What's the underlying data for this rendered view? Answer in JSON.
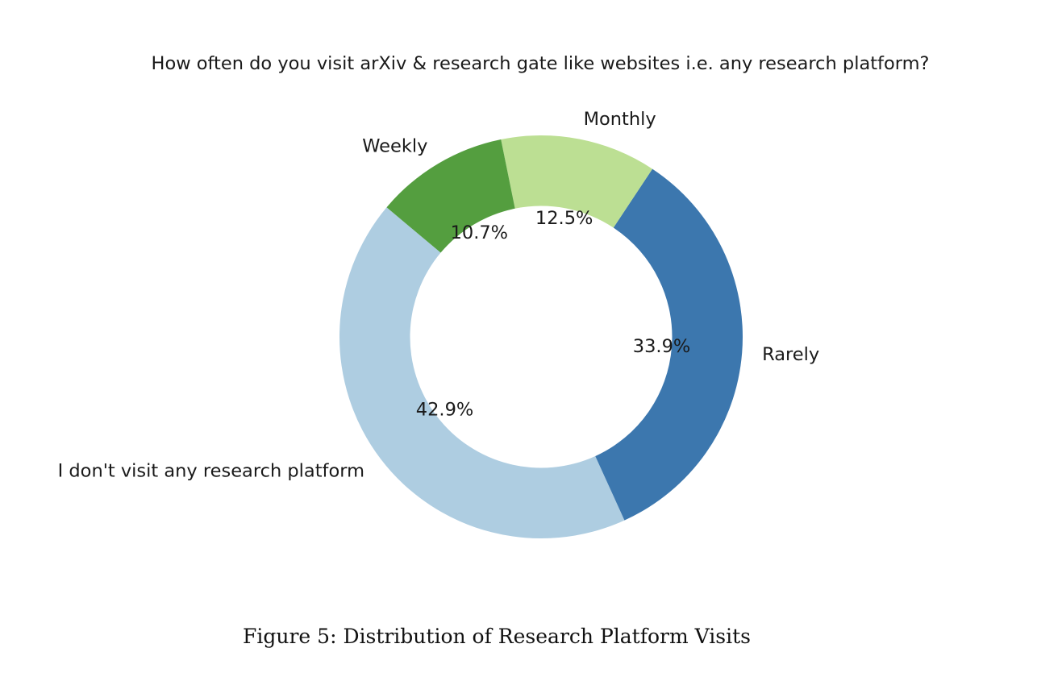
{
  "chart_data": {
    "type": "pie",
    "subtype": "donut",
    "title": "How often do you visit arXiv & research gate like websites i.e. any research platform?",
    "categories": [
      "I don't visit any research platform",
      "Rarely",
      "Monthly",
      "Weekly"
    ],
    "values": [
      42.9,
      33.9,
      12.5,
      10.7
    ],
    "value_labels": [
      "42.9%",
      "33.9%",
      "12.5%",
      "10.7%"
    ],
    "colors": [
      "#aecde1",
      "#3c77ae",
      "#bcdf93",
      "#549e3f"
    ],
    "start_angle_deg": 140,
    "direction": "counterclockwise",
    "inner_radius_ratio": 0.65,
    "legend": null,
    "xlabel": "",
    "ylabel": ""
  },
  "caption": "Figure 5: Distribution of Research Platform Visits"
}
